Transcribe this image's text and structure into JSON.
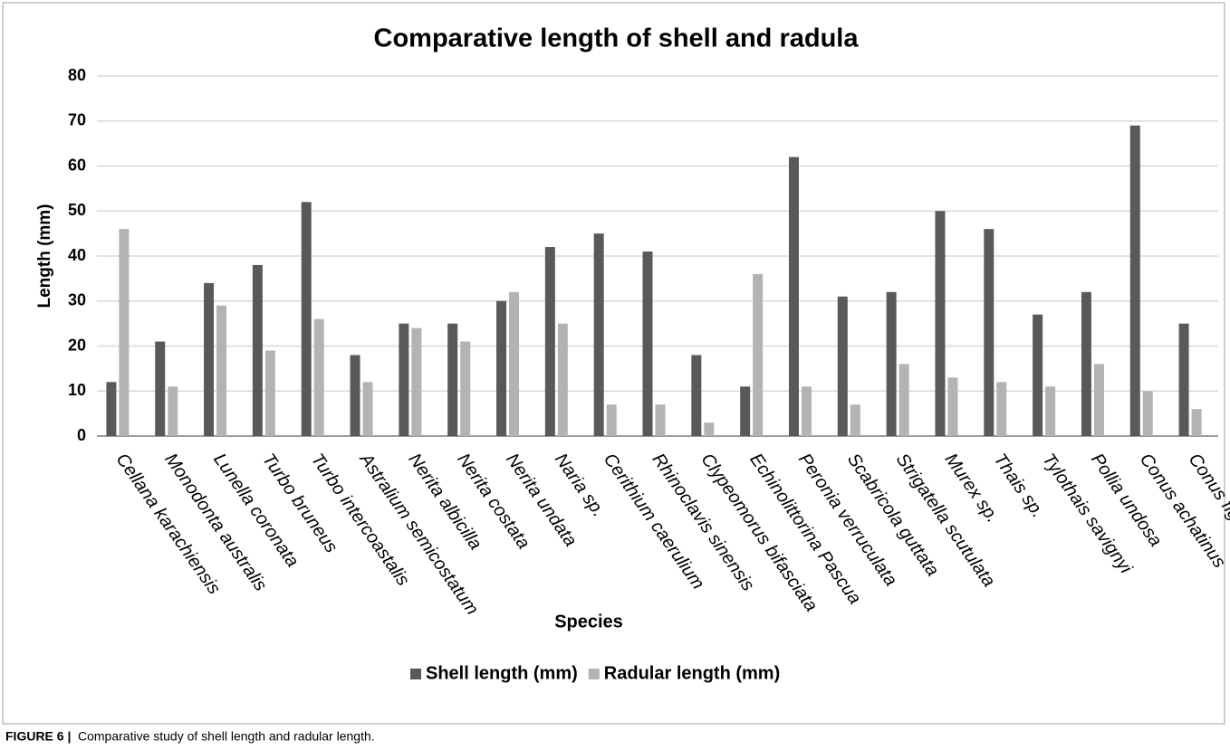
{
  "chart_data": {
    "type": "bar",
    "title": "Comparative length of shell and radula",
    "x_label": "Species",
    "y_label": "Length (mm)",
    "categories": [
      "Cellana karachiensis",
      "Monodonta australis",
      "Lunella coronata",
      "Turbo bruneus",
      "Turbo intercoastalis",
      "Astralium semicostatum",
      "Nerita albicilla",
      "Nerita costata",
      "Nerita undata",
      "Naria sp.",
      "Cerithium caerulium",
      "Rhinoclavis sinensis",
      "Clypeomorus bifasciata",
      "Echinolittorina Pascua",
      "Peronia verruculata",
      "Scabricola guttata",
      "Strigatella scutulata",
      "Murex sp.",
      "Thais sp.",
      "Tylothais savignyi",
      "Pollia undosa",
      "Conus achatinus",
      "Conus figulinus"
    ],
    "series": [
      {
        "name": "Shell length (mm)",
        "color": "#595959",
        "values": [
          12,
          21,
          34,
          38,
          52,
          18,
          25,
          25,
          30,
          42,
          45,
          41,
          18,
          11,
          62,
          31,
          32,
          50,
          46,
          27,
          32,
          69,
          25
        ]
      },
      {
        "name": "Radular length (mm)",
        "color": "#b3b3b3",
        "values": [
          46,
          11,
          29,
          19,
          26,
          12,
          24,
          21,
          32,
          25,
          7,
          7,
          3,
          36,
          11,
          7,
          16,
          13,
          12,
          11,
          16,
          10,
          6
        ]
      }
    ],
    "ylim": [
      0,
      80
    ],
    "yticks": [
      0,
      10,
      20,
      30,
      40,
      50,
      60,
      70,
      80
    ],
    "grid": true,
    "legend": "bottom"
  },
  "figure_caption": {
    "label": "FIGURE 6 |",
    "text": "Comparative study of shell length and radular length."
  }
}
